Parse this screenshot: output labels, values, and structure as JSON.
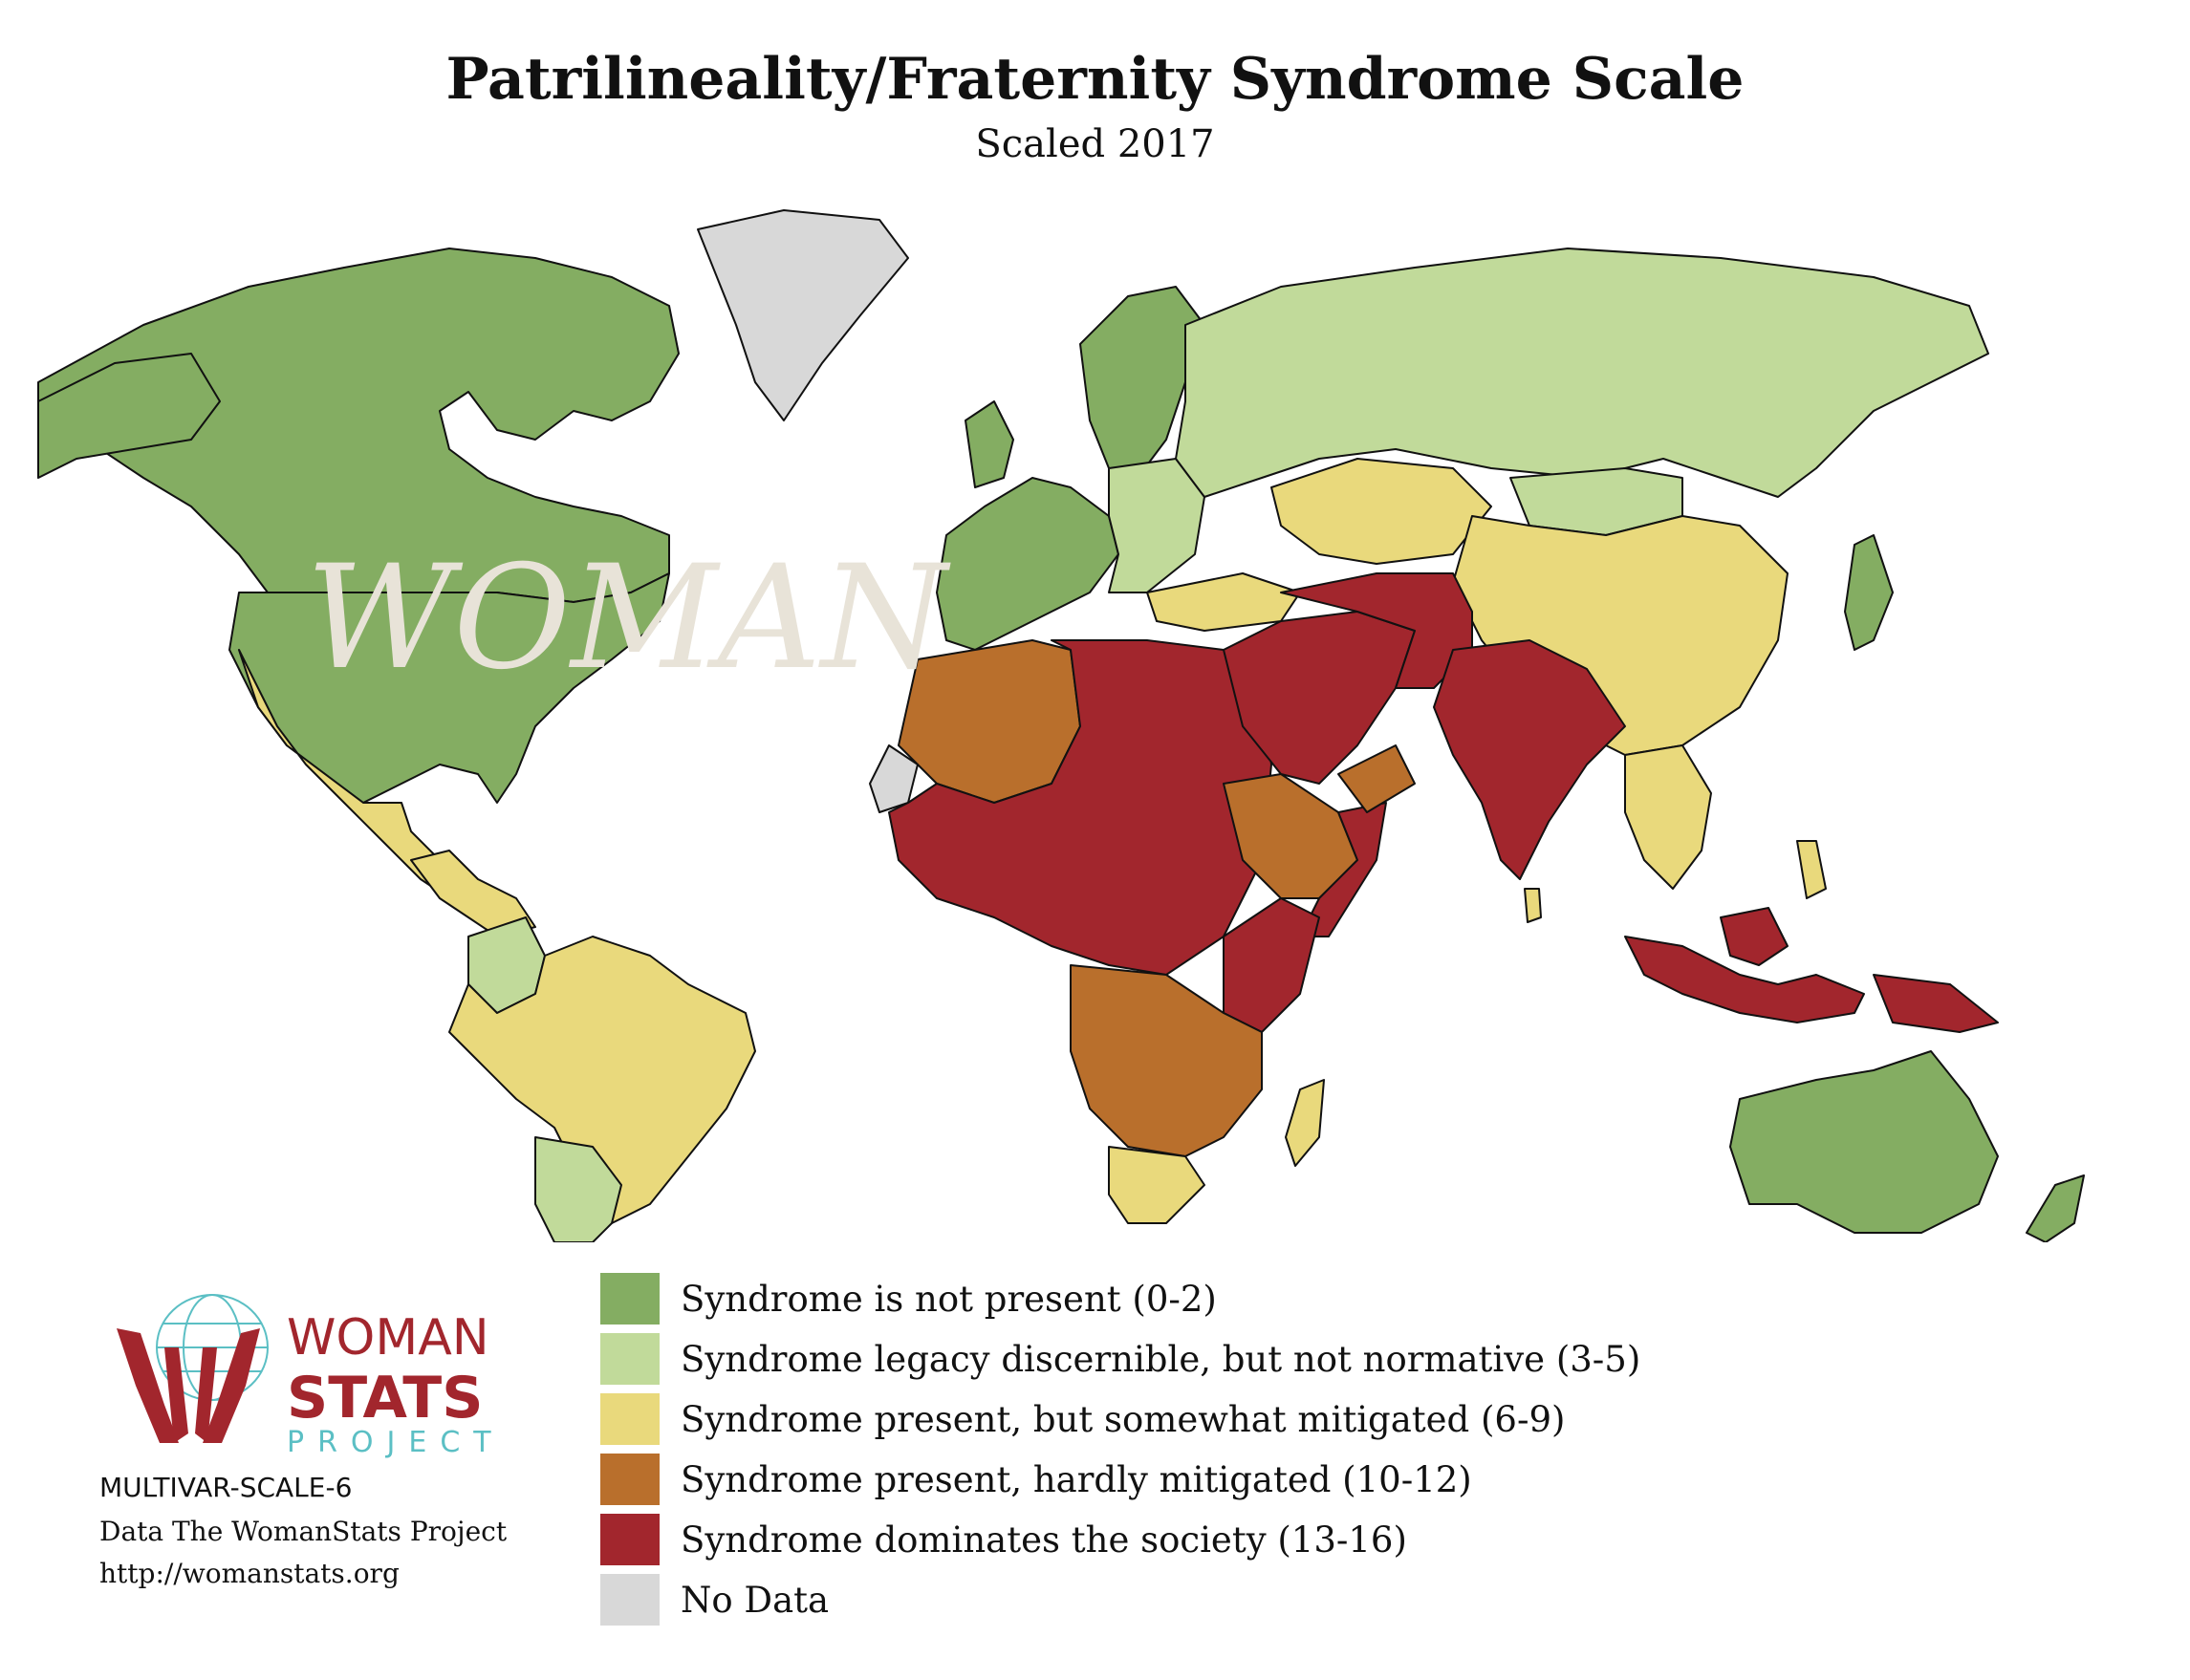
{
  "title": "Patrilineality/Fraternity Syndrome Scale",
  "subtitle": "Scaled 2017",
  "colors": {
    "cat1": "#84ad62",
    "cat2": "#c1da9a",
    "cat3": "#e9d97c",
    "cat4": "#b96f2c",
    "cat5": "#a2262d",
    "nodata": "#d8d8d8",
    "ocean": "#ffffff",
    "border": "#111111",
    "logo_red": "#a2262d",
    "logo_teal": "#5bbfc4"
  },
  "legend": [
    {
      "label": "Syndrome is not present (0-2)",
      "color": "#84ad62"
    },
    {
      "label": "Syndrome legacy discernible, but not normative (3-5)",
      "color": "#c1da9a"
    },
    {
      "label": "Syndrome present, but somewhat mitigated (6-9)",
      "color": "#e9d97c"
    },
    {
      "label": "Syndrome present, hardly mitigated (10-12)",
      "color": "#b96f2c"
    },
    {
      "label": "Syndrome dominates the society (13-16)",
      "color": "#a2262d"
    },
    {
      "label": "No Data",
      "color": "#d8d8d8"
    }
  ],
  "logo": {
    "word1": "WOMAN",
    "word2": "STATS",
    "word3": "PROJECT"
  },
  "meta": {
    "code": "MULTIVAR-SCALE-6",
    "source": "Data The WomanStats Project",
    "url": "http://womanstats.org"
  }
}
